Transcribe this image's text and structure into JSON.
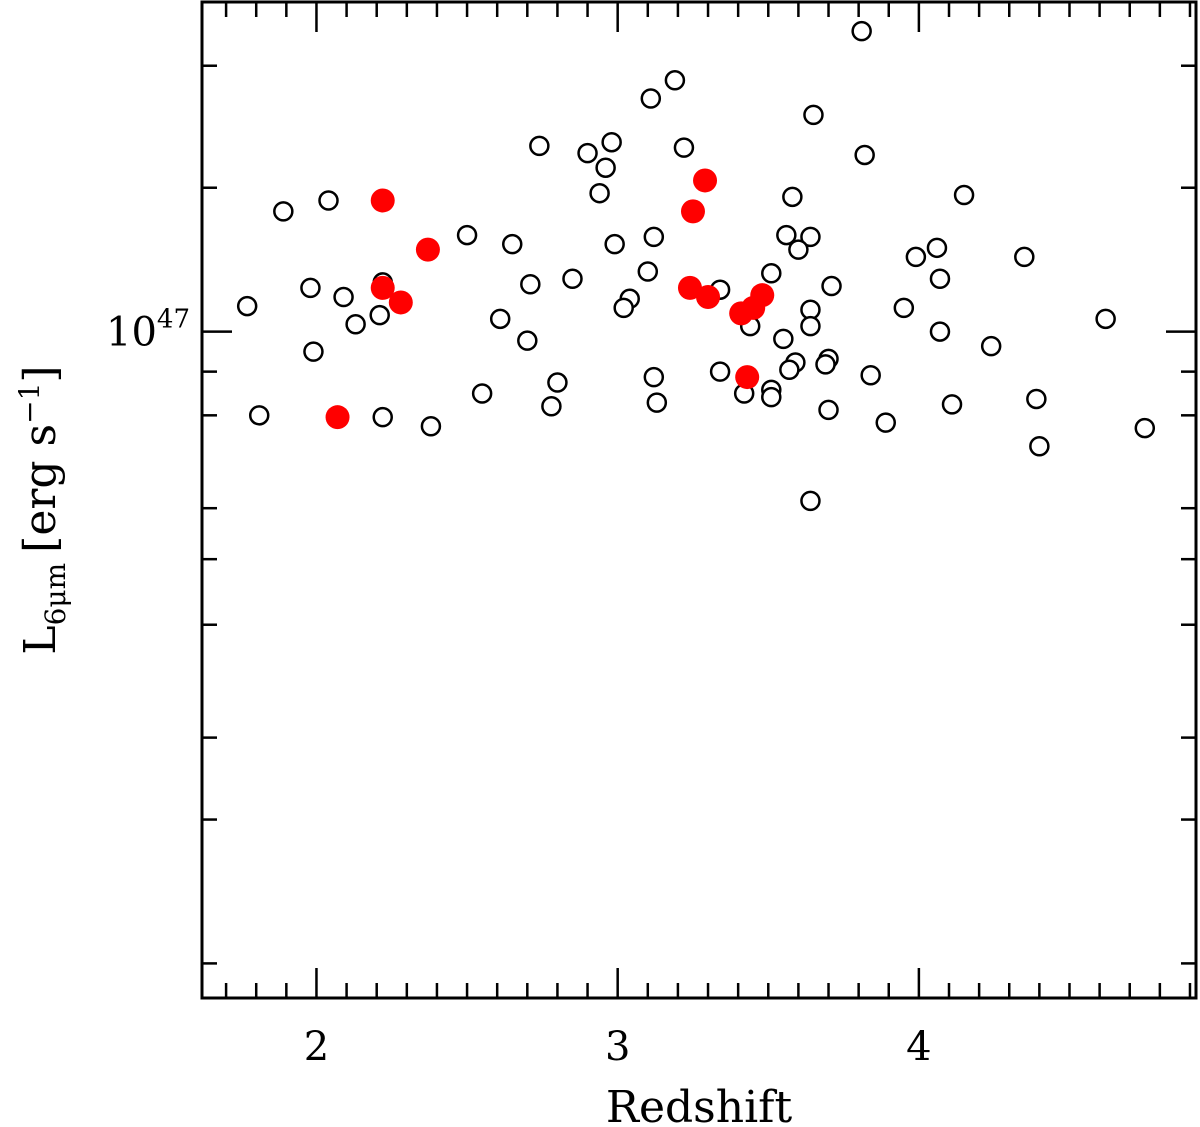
{
  "chart_data": {
    "type": "scatter",
    "title": "",
    "xlabel": "Redshift",
    "ylabel": "L",
    "ylabel_subscript": "6μm",
    "ylabel_units": "[erg s",
    "ylabel_units_exp": "−1",
    "ylabel_units_close": "]",
    "xlim": [
      1.62,
      4.92
    ],
    "ylim_log10": [
      46.634,
      47.181
    ],
    "yscale": "log",
    "x_ticks": [
      {
        "value": 2,
        "label": "2"
      },
      {
        "value": 3,
        "label": "3"
      },
      {
        "value": 4,
        "label": "4"
      }
    ],
    "y_major_tick": {
      "log10": 47,
      "base": "10",
      "exp": "47"
    },
    "y_minor_ticks_log10": [
      46.653,
      46.732,
      46.777,
      46.839,
      46.875,
      46.903,
      46.954,
      46.978,
      47.079,
      47.146
    ],
    "series": [
      {
        "name": "open",
        "style": "open-circle",
        "color": "#000000",
        "points": [
          {
            "x": 3.81,
            "y": 47.165
          },
          {
            "x": 3.19,
            "y": 47.138
          },
          {
            "x": 3.11,
            "y": 47.128
          },
          {
            "x": 3.65,
            "y": 47.119
          },
          {
            "x": 2.74,
            "y": 47.102
          },
          {
            "x": 2.98,
            "y": 47.104
          },
          {
            "x": 3.22,
            "y": 47.101
          },
          {
            "x": 2.9,
            "y": 47.098
          },
          {
            "x": 3.82,
            "y": 47.097
          },
          {
            "x": 2.96,
            "y": 47.09
          },
          {
            "x": 4.15,
            "y": 47.075
          },
          {
            "x": 2.94,
            "y": 47.076
          },
          {
            "x": 3.58,
            "y": 47.074
          },
          {
            "x": 2.04,
            "y": 47.072
          },
          {
            "x": 1.89,
            "y": 47.066
          },
          {
            "x": 2.5,
            "y": 47.053
          },
          {
            "x": 3.12,
            "y": 47.052
          },
          {
            "x": 3.56,
            "y": 47.053
          },
          {
            "x": 3.64,
            "y": 47.052
          },
          {
            "x": 2.65,
            "y": 47.048
          },
          {
            "x": 2.99,
            "y": 47.048
          },
          {
            "x": 4.06,
            "y": 47.046
          },
          {
            "x": 3.6,
            "y": 47.045
          },
          {
            "x": 3.99,
            "y": 47.041
          },
          {
            "x": 4.35,
            "y": 47.041
          },
          {
            "x": 3.1,
            "y": 47.033
          },
          {
            "x": 3.51,
            "y": 47.032
          },
          {
            "x": 2.85,
            "y": 47.029
          },
          {
            "x": 4.07,
            "y": 47.029
          },
          {
            "x": 1.98,
            "y": 47.024
          },
          {
            "x": 2.71,
            "y": 47.026
          },
          {
            "x": 3.71,
            "y": 47.025
          },
          {
            "x": 3.34,
            "y": 47.023
          },
          {
            "x": 2.09,
            "y": 47.019
          },
          {
            "x": 2.22,
            "y": 47.027
          },
          {
            "x": 3.04,
            "y": 47.018
          },
          {
            "x": 1.77,
            "y": 47.014
          },
          {
            "x": 3.02,
            "y": 47.013
          },
          {
            "x": 3.95,
            "y": 47.013
          },
          {
            "x": 3.64,
            "y": 47.012
          },
          {
            "x": 2.21,
            "y": 47.009
          },
          {
            "x": 2.61,
            "y": 47.007
          },
          {
            "x": 4.62,
            "y": 47.007
          },
          {
            "x": 2.13,
            "y": 47.004
          },
          {
            "x": 3.44,
            "y": 47.003
          },
          {
            "x": 3.64,
            "y": 47.003
          },
          {
            "x": 4.07,
            "y": 47.0
          },
          {
            "x": 3.55,
            "y": 46.996
          },
          {
            "x": 2.7,
            "y": 46.995
          },
          {
            "x": 4.24,
            "y": 46.992
          },
          {
            "x": 1.99,
            "y": 46.989
          },
          {
            "x": 3.7,
            "y": 46.985
          },
          {
            "x": 3.59,
            "y": 46.983
          },
          {
            "x": 3.69,
            "y": 46.982
          },
          {
            "x": 3.57,
            "y": 46.979
          },
          {
            "x": 3.34,
            "y": 46.978
          },
          {
            "x": 3.84,
            "y": 46.976
          },
          {
            "x": 3.12,
            "y": 46.975
          },
          {
            "x": 2.8,
            "y": 46.972
          },
          {
            "x": 3.51,
            "y": 46.968
          },
          {
            "x": 2.55,
            "y": 46.966
          },
          {
            "x": 3.42,
            "y": 46.966
          },
          {
            "x": 3.51,
            "y": 46.964
          },
          {
            "x": 4.39,
            "y": 46.963
          },
          {
            "x": 3.13,
            "y": 46.961
          },
          {
            "x": 2.78,
            "y": 46.959
          },
          {
            "x": 4.11,
            "y": 46.96
          },
          {
            "x": 3.7,
            "y": 46.957
          },
          {
            "x": 1.81,
            "y": 46.954
          },
          {
            "x": 2.22,
            "y": 46.953
          },
          {
            "x": 3.89,
            "y": 46.95
          },
          {
            "x": 2.38,
            "y": 46.948
          },
          {
            "x": 4.75,
            "y": 46.947
          },
          {
            "x": 4.4,
            "y": 46.937
          },
          {
            "x": 3.64,
            "y": 46.907
          }
        ]
      },
      {
        "name": "filled",
        "style": "filled-circle",
        "color": "#ff0000",
        "points": [
          {
            "x": 3.29,
            "y": 47.083
          },
          {
            "x": 2.22,
            "y": 47.072
          },
          {
            "x": 3.25,
            "y": 47.066
          },
          {
            "x": 2.37,
            "y": 47.045
          },
          {
            "x": 2.22,
            "y": 47.024
          },
          {
            "x": 3.24,
            "y": 47.024
          },
          {
            "x": 3.3,
            "y": 47.019
          },
          {
            "x": 3.48,
            "y": 47.02
          },
          {
            "x": 2.28,
            "y": 47.016
          },
          {
            "x": 3.45,
            "y": 47.013
          },
          {
            "x": 3.41,
            "y": 47.01
          },
          {
            "x": 3.43,
            "y": 46.975
          },
          {
            "x": 2.07,
            "y": 46.953
          }
        ]
      }
    ]
  }
}
